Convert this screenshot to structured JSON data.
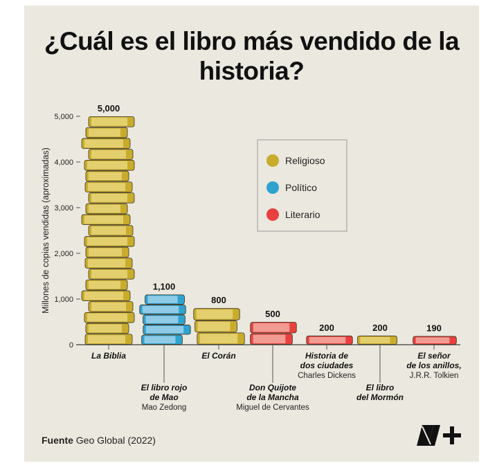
{
  "title": "¿Cuál es el libro más vendido de la historia?",
  "source": {
    "label": "Fuente",
    "text": "Geo Global (2022)"
  },
  "logo_text": "N+",
  "chart_data": {
    "type": "bar",
    "title": "¿Cuál es el libro más vendido de la historia?",
    "ylabel": "Millones de copias vendidas (aproximadas)",
    "xlabel": "",
    "ylim": [
      0,
      5000
    ],
    "yticks": [
      "0",
      "1,000",
      "2,000",
      "3,000",
      "4,000",
      "5,000"
    ],
    "grid": false,
    "legend_position": "top-right",
    "legend": [
      {
        "name": "Religioso",
        "color": "#c9ac2c"
      },
      {
        "name": "Político",
        "color": "#2ea3d0"
      },
      {
        "name": "Literario",
        "color": "#e8403f"
      }
    ],
    "categories": [
      {
        "title": [
          "La Biblia"
        ],
        "author": "",
        "value": 5000,
        "label": "5,000",
        "type": "Religioso"
      },
      {
        "title": [
          "El libro rojo",
          "de Mao"
        ],
        "author": "Mao Zedong",
        "value": 1100,
        "label": "1,100",
        "type": "Político"
      },
      {
        "title": [
          "El Corán"
        ],
        "author": "",
        "value": 800,
        "label": "800",
        "type": "Religioso"
      },
      {
        "title": [
          "Don Quijote",
          "de la Mancha"
        ],
        "author": "Miguel de Cervantes",
        "value": 500,
        "label": "500",
        "type": "Literario"
      },
      {
        "title": [
          "Historia de",
          "dos ciudades"
        ],
        "author": "Charles Dickens",
        "value": 200,
        "label": "200",
        "type": "Literario"
      },
      {
        "title": [
          "El libro",
          "del Mormón"
        ],
        "author": "",
        "value": 200,
        "label": "200",
        "type": "Religioso"
      },
      {
        "title": [
          "El señor",
          "de los anillos,"
        ],
        "author": "J.R.R. Tolkien",
        "value": 190,
        "label": "190",
        "type": "Literario"
      }
    ]
  }
}
